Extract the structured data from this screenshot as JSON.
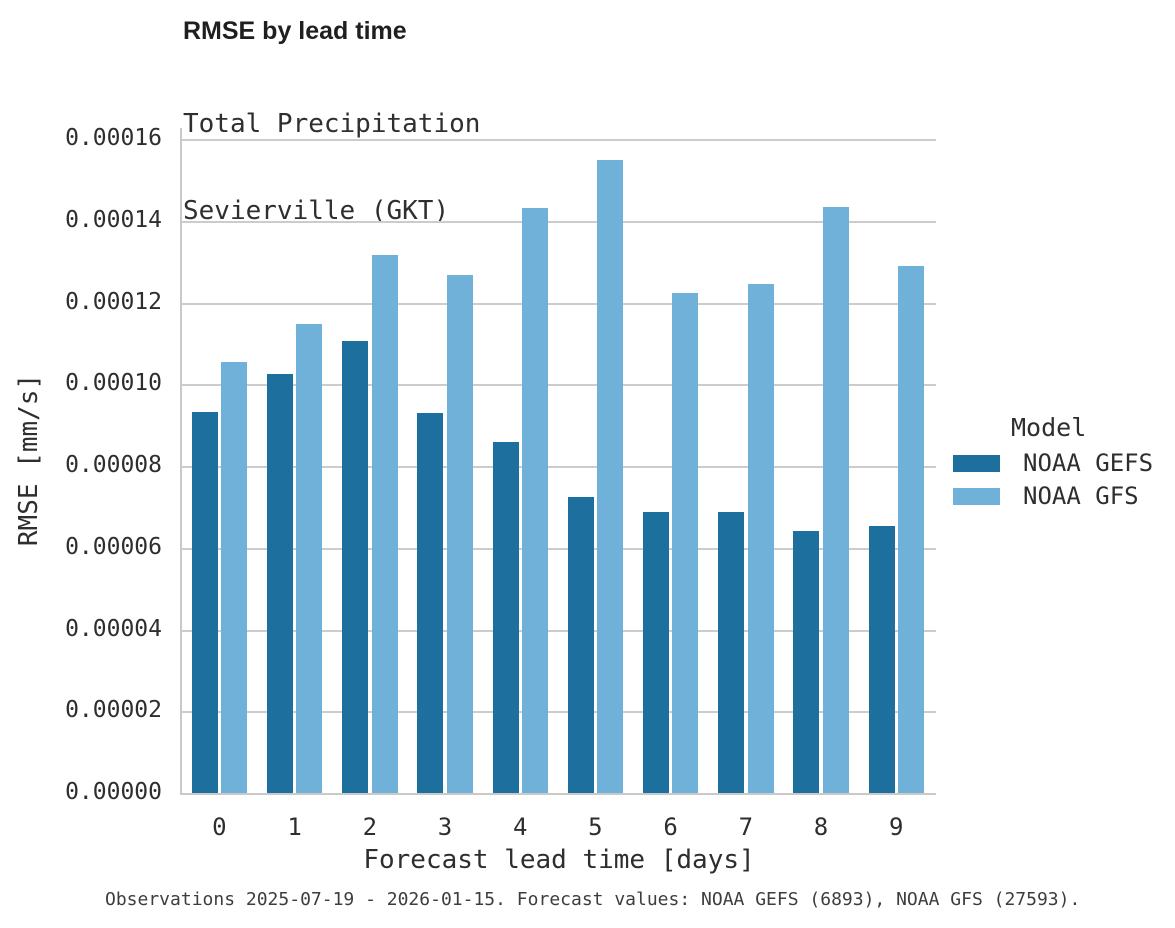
{
  "chart_data": {
    "type": "bar",
    "title": "RMSE by lead time",
    "subtitle": [
      "Total Precipitation",
      "Sevierville (GKT)"
    ],
    "xlabel": "Forecast lead time [days]",
    "ylabel": "RMSE [mm/s]",
    "categories": [
      "0",
      "1",
      "2",
      "3",
      "4",
      "5",
      "6",
      "7",
      "8",
      "9"
    ],
    "series": [
      {
        "name": "NOAA GEFS",
        "color": "#1d6f9e",
        "values": [
          9.32e-05,
          0.0001024,
          0.0001107,
          9.29e-05,
          8.58e-05,
          7.24e-05,
          6.87e-05,
          6.88e-05,
          6.42e-05,
          6.53e-05
        ]
      },
      {
        "name": "NOAA GFS",
        "color": "#6fb1d9",
        "values": [
          0.0001055,
          0.0001148,
          0.0001317,
          0.0001267,
          0.000143,
          0.0001549,
          0.0001223,
          0.0001245,
          0.0001434,
          0.0001289
        ]
      }
    ],
    "ylim": [
      0,
      0.00016
    ],
    "yticks": [
      0.0,
      2e-05,
      4e-05,
      6e-05,
      8e-05,
      0.0001,
      0.00012,
      0.00014,
      0.00016
    ],
    "ytick_labels": [
      "0.00000",
      "0.00002",
      "0.00004",
      "0.00006",
      "0.00008",
      "0.00010",
      "0.00012",
      "0.00014",
      "0.00016"
    ],
    "grid": "horizontal",
    "legend": {
      "title": "Model",
      "position": "right"
    },
    "caption": "Observations 2025-07-19 - 2026-01-15. Forecast values: NOAA GEFS (6893), NOAA GFS (27593)."
  }
}
